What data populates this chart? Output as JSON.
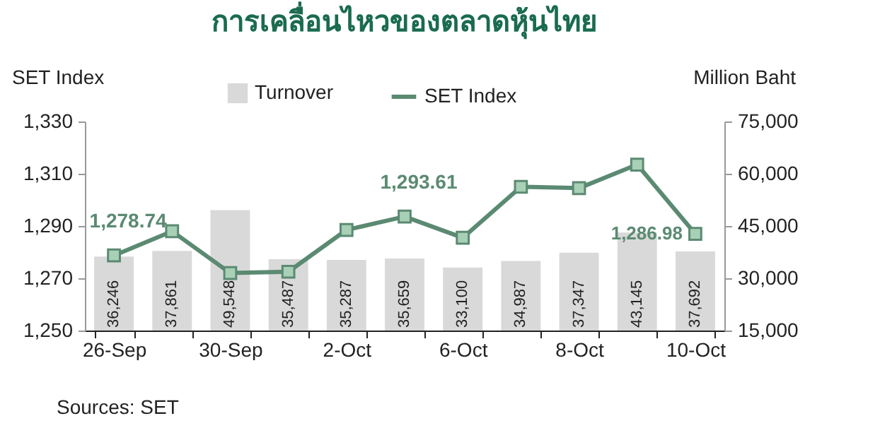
{
  "chart_data": {
    "type": "line",
    "title": "การเคลื่อนไหวของตลาดหุ้นไทย",
    "ylabel": "SET Index",
    "y2label": "Million Baht",
    "categories": [
      "26-Sep",
      null,
      "30-Sep",
      null,
      "2-Oct",
      null,
      "6-Oct",
      null,
      "8-Oct",
      null,
      "10-Oct"
    ],
    "series": [
      {
        "name": "Turnover",
        "type": "bar",
        "axis": "y2",
        "color": "#d9d9d9",
        "values": [
          36246,
          37861,
          49548,
          35487,
          35287,
          35659,
          33100,
          34987,
          37347,
          43145,
          37692
        ],
        "value_labels": [
          "36,246",
          "37,861",
          "49,548",
          "35,487",
          "35,287",
          "35,659",
          "33,100",
          "34,987",
          "37,347",
          "43,145",
          "37,692"
        ]
      },
      {
        "name": "SET Index",
        "axis": "y",
        "color": "#5b8a72",
        "marker": "square",
        "line_style": "solid",
        "values": [
          1278.74,
          1288,
          1272,
          1272.5,
          1288.5,
          1293.61,
          1285.5,
          1305,
          1304.5,
          1313.5,
          1286.98
        ],
        "value_labels": [
          "1,278.74",
          null,
          null,
          null,
          null,
          "1,293.61",
          null,
          null,
          null,
          null,
          "1,286.98"
        ]
      }
    ],
    "ylim": [
      1250,
      1330
    ],
    "yticks": [
      {
        "value": 1250,
        "label": "1,250"
      },
      {
        "value": 1270,
        "label": "1,270"
      },
      {
        "value": 1290,
        "label": "1,290"
      },
      {
        "value": 1310,
        "label": "1,310"
      },
      {
        "value": 1330,
        "label": "1,330"
      }
    ],
    "y2lim": [
      15000,
      75000
    ],
    "y2ticks": [
      {
        "value": 15000,
        "label": "15,000"
      },
      {
        "value": 30000,
        "label": "30,000"
      },
      {
        "value": 45000,
        "label": "45,000"
      },
      {
        "value": 60000,
        "label": "60,000"
      },
      {
        "value": 75000,
        "label": "75,000"
      }
    ],
    "legend": "top",
    "annotations": [
      "Sources: SET"
    ]
  }
}
